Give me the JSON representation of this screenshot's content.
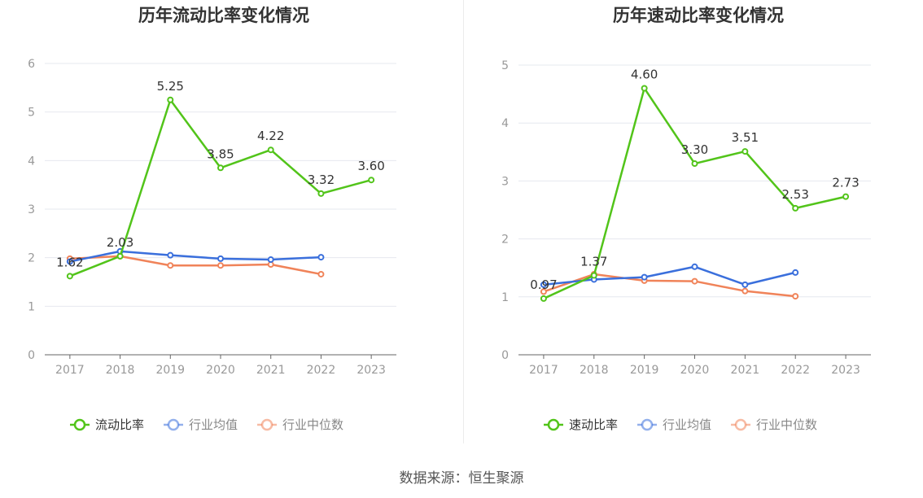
{
  "source": "数据来源：恒生聚源",
  "chart_data": [
    {
      "type": "line",
      "title": "历年流动比率变化情况",
      "categories": [
        "2017",
        "2018",
        "2019",
        "2020",
        "2021",
        "2022",
        "2023"
      ],
      "ylim": [
        0,
        6
      ],
      "yticks": [
        0,
        1,
        2,
        3,
        4,
        5,
        6
      ],
      "grid": true,
      "legend": "bottom",
      "series": [
        {
          "name": "流动比率",
          "color": "#52c41a",
          "values": [
            1.62,
            2.03,
            5.25,
            3.85,
            4.22,
            3.32,
            3.6
          ],
          "labels": [
            "1.62",
            "2.03",
            "5.25",
            "3.85",
            "4.22",
            "3.32",
            "3.60"
          ]
        },
        {
          "name": "行业均值",
          "color": "#3a6fdc",
          "values": [
            1.92,
            2.13,
            2.05,
            1.98,
            1.96,
            2.01,
            null
          ]
        },
        {
          "name": "行业中位数",
          "color": "#f08359",
          "values": [
            1.98,
            2.03,
            1.84,
            1.84,
            1.86,
            1.66,
            null
          ]
        }
      ]
    },
    {
      "type": "line",
      "title": "历年速动比率变化情况",
      "categories": [
        "2017",
        "2018",
        "2019",
        "2020",
        "2021",
        "2022",
        "2023"
      ],
      "ylim": [
        0,
        5
      ],
      "yticks": [
        0,
        1,
        2,
        3,
        4,
        5
      ],
      "grid": true,
      "legend": "bottom",
      "series": [
        {
          "name": "速动比率",
          "color": "#52c41a",
          "values": [
            0.97,
            1.37,
            4.6,
            3.3,
            3.51,
            2.53,
            2.73
          ],
          "labels": [
            "0.97",
            "1.37",
            "4.60",
            "3.30",
            "3.51",
            "2.53",
            "2.73"
          ]
        },
        {
          "name": "行业均值",
          "color": "#3a6fdc",
          "values": [
            1.21,
            1.3,
            1.34,
            1.52,
            1.21,
            1.42,
            null
          ]
        },
        {
          "name": "行业中位数",
          "color": "#f08359",
          "values": [
            1.09,
            1.39,
            1.28,
            1.27,
            1.1,
            1.01,
            null
          ]
        }
      ]
    }
  ]
}
